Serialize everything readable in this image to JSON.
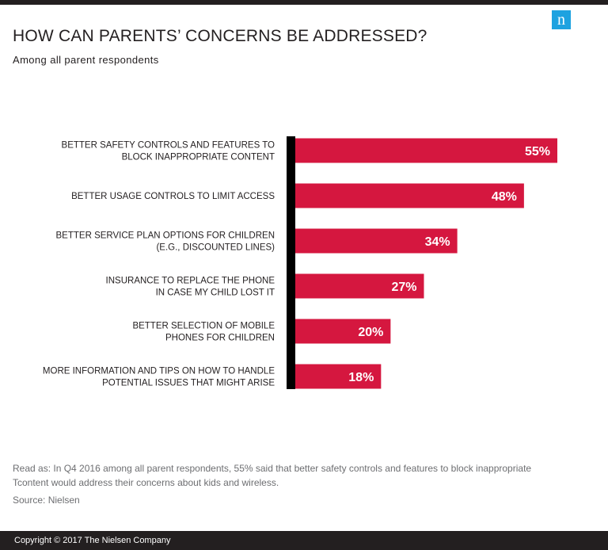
{
  "header": {
    "title": "HOW CAN PARENTS’ CONCERNS BE ADDRESSED?",
    "subtitle": "Among all parent respondents",
    "logo_letter": "n"
  },
  "colors": {
    "bar": "#d5173f",
    "axis": "#000000",
    "logo": "#1ea2e0",
    "footer_bg": "#231f20"
  },
  "chart_data": {
    "type": "bar",
    "orientation": "horizontal",
    "title": "HOW CAN PARENTS’ CONCERNS BE ADDRESSED?",
    "subtitle": "Among all parent respondents",
    "categories": [
      [
        "BETTER SAFETY CONTROLS AND FEATURES TO",
        "BLOCK INAPPROPRIATE CONTENT"
      ],
      [
        "BETTER USAGE CONTROLS TO LIMIT ACCESS"
      ],
      [
        "BETTER SERVICE PLAN OPTIONS FOR CHILDREN",
        "(E.G., DISCOUNTED LINES)"
      ],
      [
        "INSURANCE TO REPLACE THE PHONE",
        "IN CASE MY CHILD LOST IT"
      ],
      [
        "BETTER SELECTION OF MOBILE",
        "PHONES FOR CHILDREN"
      ],
      [
        "MORE INFORMATION AND TIPS ON HOW TO HANDLE",
        "POTENTIAL ISSUES THAT MIGHT ARISE"
      ]
    ],
    "values": [
      55,
      48,
      34,
      27,
      20,
      18
    ],
    "value_labels": [
      "55%",
      "48%",
      "34%",
      "27%",
      "20%",
      "18%"
    ],
    "unit": "%",
    "xlim": [
      0,
      55
    ],
    "grid": false,
    "legend": "none"
  },
  "footnote": {
    "read_as": "Read as: In Q4 2016 among all parent respondents, 55% said that better safety controls and features to block inappropriate Tcontent would address their concerns about kids and wireless.",
    "source": "Source: Nielsen"
  },
  "footer": {
    "copyright": "Copyright © 2017 The Nielsen Company"
  }
}
